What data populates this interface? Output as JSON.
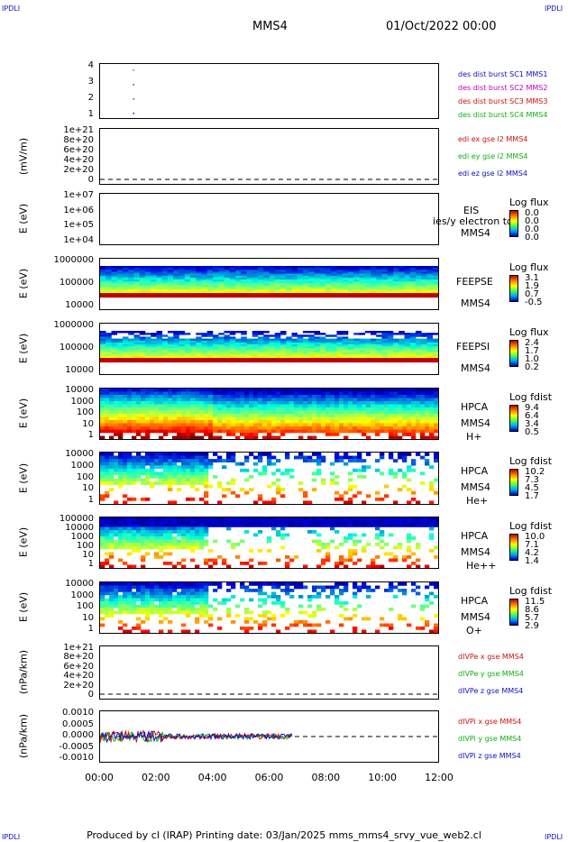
{
  "header": {
    "corner_left": "IPDLI",
    "corner_right": "IPDLI",
    "mission": "MMS4",
    "date": "01/Oct/2022 00:00"
  },
  "footer": {
    "text": "Produced by cl (IRAP)   Printing date: 03/Jan/2025   mms_mms4_srvy_vue_web2.cl"
  },
  "x_ticks": [
    "00:00",
    "02:00",
    "04:00",
    "06:00",
    "08:00",
    "10:00",
    "12:00"
  ],
  "panels": [
    {
      "ylabel": "",
      "ticks": [
        "4",
        "3",
        "2",
        "1"
      ],
      "legend": [
        {
          "text": "des dist burst SC1 MMS1",
          "color": "#1010c0"
        },
        {
          "text": "des dist burst SC2 MMS2",
          "color": "#c000c0"
        },
        {
          "text": "des dist burst SC3 MMS3",
          "color": "#d01010"
        },
        {
          "text": "des dist burst SC4 MMS4",
          "color": "#10b010"
        }
      ]
    },
    {
      "ylabel": "(mV/m)",
      "ticks": [
        "1e+21",
        "8e+20",
        "6e+20",
        "4e+20",
        "2e+20",
        "0"
      ],
      "legend": [
        {
          "text": "edi ex gse l2 MMS4",
          "color": "#d01010"
        },
        {
          "text": "edi ey gse l2 MMS4",
          "color": "#10b010"
        },
        {
          "text": "edi ez gse l2 MMS4",
          "color": "#1010c0"
        }
      ]
    },
    {
      "ylabel": "E (eV)",
      "ticks": [
        "1e+07",
        "1e+06",
        "1e+05",
        "1e+04"
      ],
      "right_labels": [
        "EIS",
        "ies/y electron tof",
        "MMS4"
      ],
      "cb_title": "Log flux",
      "cb_values": [
        "0.0",
        "0.0",
        "0.0",
        "0.0"
      ]
    },
    {
      "ylabel": "E (eV)",
      "ticks": [
        "1000000",
        "100000",
        "10000"
      ],
      "right_labels": [
        "FEEPSE",
        "MMS4"
      ],
      "cb_title": "Log flux",
      "cb_values": [
        "3.1",
        "1.9",
        "0.7",
        "-0.5"
      ]
    },
    {
      "ylabel": "E (eV)",
      "ticks": [
        "1000000",
        "100000",
        "10000"
      ],
      "right_labels": [
        "FEEPSI",
        "MMS4"
      ],
      "cb_title": "Log flux",
      "cb_values": [
        "2.4",
        "1.7",
        "1.0",
        "0.2"
      ]
    },
    {
      "ylabel": "E (eV)",
      "ticks": [
        "10000",
        "1000",
        "100",
        "10",
        "1"
      ],
      "right_labels": [
        "HPCA",
        "MMS4",
        "H+"
      ],
      "cb_title": "Log fdist",
      "cb_values": [
        "9.4",
        "6.4",
        "3.4",
        "0.5"
      ]
    },
    {
      "ylabel": "E (eV)",
      "ticks": [
        "10000",
        "1000",
        "100",
        "10",
        "1"
      ],
      "right_labels": [
        "HPCA",
        "MMS4",
        "He+"
      ],
      "cb_title": "Log fdist",
      "cb_values": [
        "10.2",
        "7.3",
        "4.5",
        "1.7"
      ]
    },
    {
      "ylabel": "E (eV)",
      "ticks": [
        "100000",
        "10000",
        "1000",
        "100",
        "10",
        "1"
      ],
      "right_labels": [
        "HPCA",
        "MMS4",
        "He++"
      ],
      "cb_title": "Log fdist",
      "cb_values": [
        "10.0",
        "7.1",
        "4.2",
        "1.4"
      ]
    },
    {
      "ylabel": "E (eV)",
      "ticks": [
        "10000",
        "1000",
        "100",
        "10",
        "1"
      ],
      "right_labels": [
        "HPCA",
        "MMS4",
        "O+"
      ],
      "cb_title": "Log fdist",
      "cb_values": [
        "11.5",
        "8.6",
        "5.7",
        "2.9"
      ]
    },
    {
      "ylabel": "(nPa/km)",
      "ticks": [
        "1e+21",
        "8e+20",
        "6e+20",
        "4e+20",
        "2e+20",
        "0"
      ],
      "legend": [
        {
          "text": "dIVPe x gse MMS4",
          "color": "#d01010"
        },
        {
          "text": "dIVPe y gse MMS4",
          "color": "#10b010"
        },
        {
          "text": "dIVPe z gse MMS4",
          "color": "#1010c0"
        }
      ]
    },
    {
      "ylabel": "(nPa/km)",
      "ticks": [
        "0.0010",
        "0.0005",
        "0.0000",
        "-0.0005",
        "-0.0010"
      ],
      "legend": [
        {
          "text": "dIVPi x gse MMS4",
          "color": "#d01010"
        },
        {
          "text": "dIVPi y gse MMS4",
          "color": "#10b010"
        },
        {
          "text": "dIVPi z gse MMS4",
          "color": "#1010c0"
        }
      ]
    }
  ],
  "chart_data": {
    "type": "heatmap",
    "title": "MMS4  01/Oct/2022 00:00",
    "x_range": [
      "00:00",
      "12:00"
    ],
    "burst_markers": [
      {
        "spacecraft": 1,
        "time": "01:10"
      },
      {
        "spacecraft": 2,
        "time": "01:10"
      },
      {
        "spacecraft": 3,
        "time": "01:10"
      },
      {
        "spacecraft": 4,
        "time": "01:10"
      }
    ],
    "data_coverage_end": "12:00",
    "divergence_data_end": "06:50"
  }
}
